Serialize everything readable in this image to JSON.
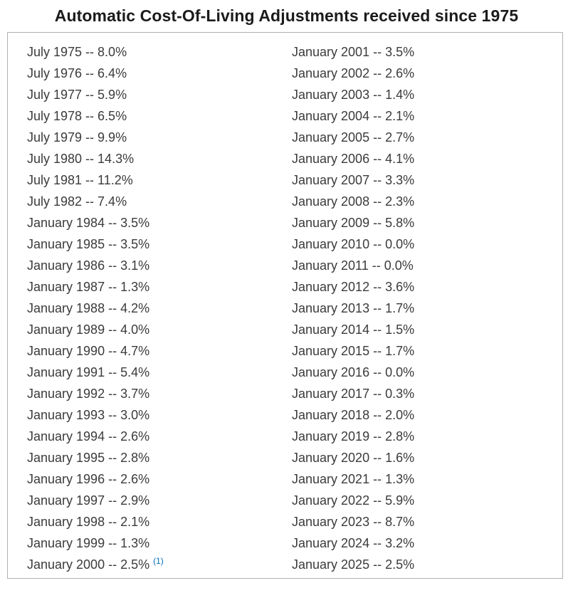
{
  "page": {
    "title": "Automatic Cost-Of-Living Adjustments received since 1975"
  },
  "list": {
    "separator": "--",
    "columns": {
      "left": [
        {
          "date": "July 1975",
          "value": "8.0%"
        },
        {
          "date": "July 1976",
          "value": "6.4%"
        },
        {
          "date": "July 1977",
          "value": "5.9%"
        },
        {
          "date": "July 1978",
          "value": "6.5%"
        },
        {
          "date": "July 1979",
          "value": "9.9%"
        },
        {
          "date": "July 1980",
          "value": "14.3%"
        },
        {
          "date": "July 1981",
          "value": "11.2%"
        },
        {
          "date": "July 1982",
          "value": "7.4%"
        },
        {
          "date": "January 1984",
          "value": "3.5%"
        },
        {
          "date": "January 1985",
          "value": "3.5%"
        },
        {
          "date": "January 1986",
          "value": "3.1%"
        },
        {
          "date": "January 1987",
          "value": "1.3%"
        },
        {
          "date": "January 1988",
          "value": "4.2%"
        },
        {
          "date": "January 1989",
          "value": "4.0%"
        },
        {
          "date": "January 1990",
          "value": "4.7%"
        },
        {
          "date": "January 1991",
          "value": "5.4%"
        },
        {
          "date": "January 1992",
          "value": "3.7%"
        },
        {
          "date": "January 1993",
          "value": "3.0%"
        },
        {
          "date": "January 1994",
          "value": "2.6%"
        },
        {
          "date": "January 1995",
          "value": "2.8%"
        },
        {
          "date": "January 1996",
          "value": "2.6%"
        },
        {
          "date": "January 1997",
          "value": "2.9%"
        },
        {
          "date": "January 1998",
          "value": "2.1%"
        },
        {
          "date": "January 1999",
          "value": "1.3%"
        },
        {
          "date": "January 2000",
          "value": "2.5%",
          "footnote": "(1)"
        }
      ],
      "right": [
        {
          "date": "January 2001",
          "value": "3.5%"
        },
        {
          "date": "January 2002",
          "value": "2.6%"
        },
        {
          "date": "January 2003",
          "value": "1.4%"
        },
        {
          "date": "January 2004",
          "value": "2.1%"
        },
        {
          "date": "January 2005",
          "value": "2.7%"
        },
        {
          "date": "January 2006",
          "value": "4.1%"
        },
        {
          "date": "January 2007",
          "value": "3.3%"
        },
        {
          "date": "January 2008",
          "value": "2.3%"
        },
        {
          "date": "January 2009",
          "value": "5.8%"
        },
        {
          "date": "January 2010",
          "value": "0.0%"
        },
        {
          "date": "January 2011",
          "value": "0.0%"
        },
        {
          "date": "January 2012",
          "value": "3.6%"
        },
        {
          "date": "January 2013",
          "value": "1.7%"
        },
        {
          "date": "January 2014",
          "value": "1.5%"
        },
        {
          "date": "January 2015",
          "value": "1.7%"
        },
        {
          "date": "January 2016",
          "value": "0.0%"
        },
        {
          "date": "January 2017",
          "value": "0.3%"
        },
        {
          "date": "January 2018",
          "value": "2.0%"
        },
        {
          "date": "January 2019",
          "value": "2.8%"
        },
        {
          "date": "January 2020",
          "value": "1.6%"
        },
        {
          "date": "January 2021",
          "value": "1.3%"
        },
        {
          "date": "January 2022",
          "value": "5.9%"
        },
        {
          "date": "January 2023",
          "value": "8.7%"
        },
        {
          "date": "January 2024",
          "value": "3.2%"
        },
        {
          "date": "January 2025",
          "value": "2.5%"
        }
      ]
    }
  },
  "colors": {
    "title_text": "#1b1b1b",
    "body_text": "#3b3b3b",
    "box_border": "#b1b1b1",
    "footnote_link": "#0071bc",
    "background": "#ffffff"
  }
}
